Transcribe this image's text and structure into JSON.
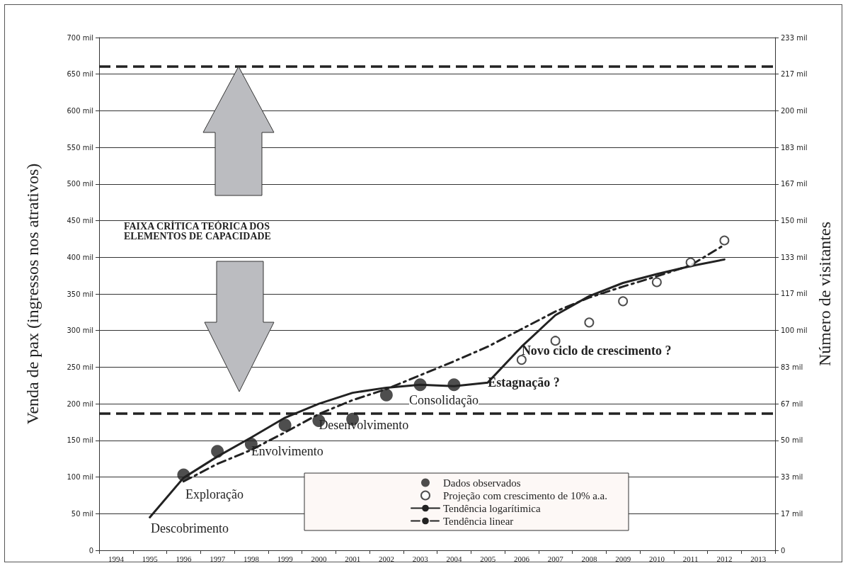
{
  "chart_data": {
    "type": "line",
    "categories": [
      "1994",
      "1995",
      "1996",
      "1997",
      "1998",
      "1999",
      "2000",
      "2001",
      "2002",
      "2003",
      "2004",
      "2005",
      "2006",
      "2007",
      "2008",
      "2009",
      "2010",
      "2011",
      "2012",
      "2013"
    ],
    "ylabel": "Venda de pax (ingressos nos atrativos)",
    "y2label": "Número de visitantes",
    "ylim": [
      0,
      700
    ],
    "yticks": [
      0,
      {
        "value": 50,
        "label": "50 mil"
      },
      {
        "value": 100,
        "label": "100 mil"
      },
      {
        "value": 150,
        "label": "150 mil"
      },
      {
        "value": 200,
        "label": "200 mil"
      },
      {
        "value": 250,
        "label": "250 mil"
      },
      {
        "value": 300,
        "label": "300 mil"
      },
      {
        "value": 350,
        "label": "350 mil"
      },
      {
        "value": 400,
        "label": "400 mil"
      },
      {
        "value": 450,
        "label": "450 mil"
      },
      {
        "value": 500,
        "label": "500 mil"
      },
      {
        "value": 550,
        "label": "550 mil"
      },
      {
        "value": 600,
        "label": "600 mil"
      },
      {
        "value": 650,
        "label": "650 mil"
      },
      {
        "value": 700,
        "label": "700 mil"
      }
    ],
    "y2lim": [
      0,
      233.3
    ],
    "y2ticks": [
      0,
      {
        "value": 16.67,
        "label": "17 mil"
      },
      {
        "value": 33.33,
        "label": "33 mil"
      },
      {
        "value": 50,
        "label": "50 mil"
      },
      {
        "value": 66.67,
        "label": "67 mil"
      },
      {
        "value": 83.33,
        "label": "83 mil"
      },
      {
        "value": 100,
        "label": "100 mil"
      },
      {
        "value": 116.67,
        "label": "117 mil"
      },
      {
        "value": 133.33,
        "label": "133 mil"
      },
      {
        "value": 150,
        "label": "150 mil"
      },
      {
        "value": 166.67,
        "label": "167 mil"
      },
      {
        "value": 183.33,
        "label": "183 mil"
      },
      {
        "value": 200,
        "label": "200 mil"
      },
      {
        "value": 216.67,
        "label": "217 mil"
      },
      {
        "value": 233.3,
        "label": "233 mil"
      }
    ],
    "grid": "y",
    "legend": "bottom",
    "series": [
      {
        "name": "Dados observados",
        "type": "scatter",
        "marker": "circle",
        "color": "#222222",
        "values": [
          null,
          null,
          103,
          135,
          145,
          171,
          177,
          179,
          212,
          226,
          226,
          null,
          null,
          null,
          null,
          null,
          null,
          null,
          null,
          null
        ]
      },
      {
        "name": "Projeção com crescimento de 10% a.a.",
        "type": "scatter",
        "marker": "circle",
        "color": "#222222",
        "values": [
          null,
          null,
          null,
          null,
          null,
          null,
          null,
          null,
          null,
          null,
          null,
          null,
          260,
          286,
          311,
          340,
          366,
          393,
          423,
          null
        ]
      },
      {
        "name": "Tendência logarítimica",
        "type": "line",
        "line_style": "solid",
        "marker": "none",
        "color": "#222222",
        "values": [
          null,
          45,
          99,
          128,
          154,
          181,
          200,
          215,
          222,
          226,
          224,
          229,
          278,
          321,
          347,
          365,
          377,
          388,
          397,
          null
        ]
      },
      {
        "name": "Tendência linear",
        "type": "line",
        "line_style": "dashed",
        "marker": "none",
        "color": "#222222",
        "values": [
          null,
          null,
          94,
          118,
          137,
          161,
          186,
          205,
          220,
          239,
          258,
          278,
          302,
          326,
          345,
          360,
          374,
          389,
          417,
          null
        ]
      }
    ],
    "ref_lines": [
      {
        "axis": "y",
        "value": 661,
        "line_style": "dashed",
        "color": "#222222"
      },
      {
        "axis": "y",
        "value": 187,
        "line_style": "dashed",
        "color": "#222222"
      }
    ],
    "annotations": [
      "FAIXA CRÍTICA TEÓRICA DOS ELEMENTOS DE CAPACIDADE",
      "Descobrimento",
      "Exploração",
      {
        "text": "Envolvimento",
        "x": "1998",
        "y": 135
      },
      {
        "text": "Desenvolvimento",
        "x": "2000",
        "y": 171
      },
      "Consolidação",
      {
        "text": "Estagnação ?",
        "x": "2005",
        "y": 229
      },
      {
        "text": "Novo ciclo de crescimento ?",
        "x": "2006",
        "y": 273
      }
    ]
  }
}
